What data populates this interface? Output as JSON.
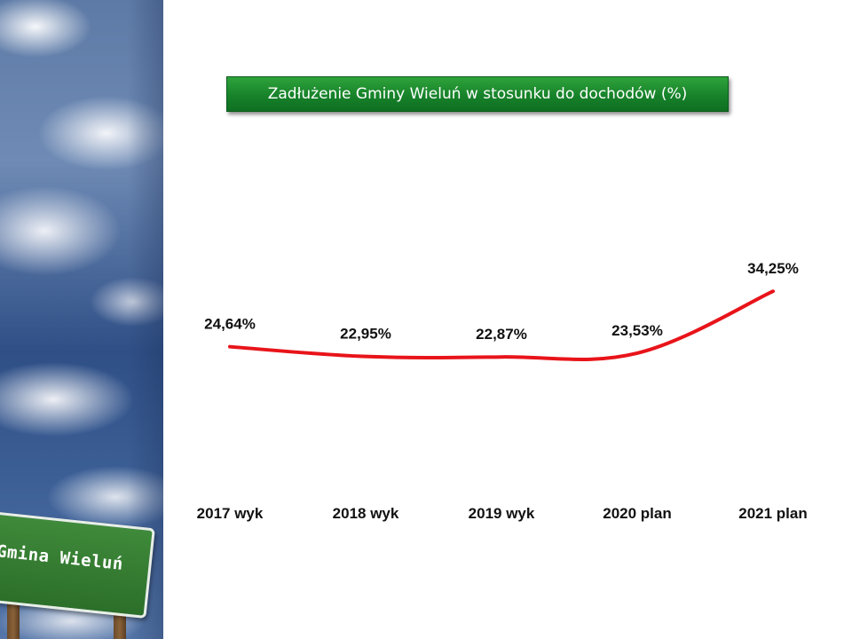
{
  "slide": {
    "title": "Zadłużenie Gminy Wieluń w stosunku do dochodów (%)",
    "sign_text": "Gmina Wieluń",
    "title_color": "#17822a"
  },
  "chart_data": {
    "type": "line",
    "title": "Zadłużenie Gminy Wieluń w stosunku do dochodów (%)",
    "categories": [
      "2017 wyk",
      "2018 wyk",
      "2019 wyk",
      "2020 plan",
      "2021 plan"
    ],
    "values": [
      24.64,
      22.95,
      22.87,
      23.53,
      34.25
    ],
    "data_labels": [
      "24,64%",
      "22,95%",
      "22,87%",
      "23,53%",
      "34,25%"
    ],
    "xlabel": "",
    "ylabel": "",
    "grid": false,
    "legend": "none",
    "line_color": "#e8141a"
  }
}
